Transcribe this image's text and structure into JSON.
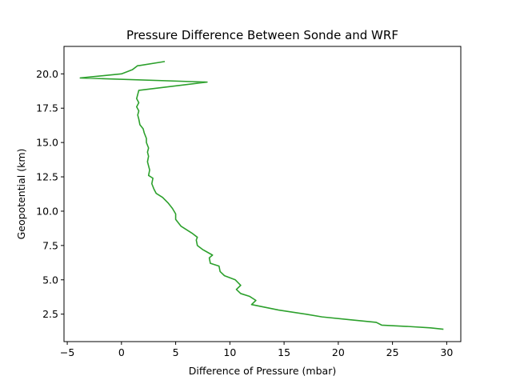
{
  "chart_data": {
    "type": "line",
    "title": "Pressure Difference Between Sonde and WRF",
    "xlabel": "Difference of Pressure (mbar)",
    "ylabel": "Geopotential (km)",
    "xlim": [
      -5.3,
      31.3
    ],
    "ylim": [
      0.5,
      22.0
    ],
    "xticks": [
      -5,
      0,
      5,
      10,
      15,
      20,
      25,
      30
    ],
    "xtick_labels": [
      "−5",
      "0",
      "5",
      "10",
      "15",
      "20",
      "25",
      "30"
    ],
    "yticks": [
      2.5,
      5.0,
      7.5,
      10.0,
      12.5,
      15.0,
      17.5,
      20.0
    ],
    "ytick_labels": [
      "2.5",
      "5.0",
      "7.5",
      "10.0",
      "12.5",
      "15.0",
      "17.5",
      "20.0"
    ],
    "grid": false,
    "series": [
      {
        "color": "#2ca02c",
        "x": [
          29.7,
          28.5,
          26.5,
          24.0,
          23.5,
          21.0,
          18.5,
          17.0,
          14.5,
          12.0,
          12.4,
          11.8,
          11.0,
          10.6,
          11.0,
          10.5,
          9.5,
          9.1,
          9.0,
          8.2,
          8.1,
          8.4,
          7.5,
          7.0,
          6.9,
          7.0,
          6.5,
          5.5,
          5.0,
          5.0,
          4.7,
          4.3,
          3.8,
          3.2,
          3.0,
          2.8,
          2.9,
          2.5,
          2.6,
          2.5,
          2.4,
          2.5,
          2.4,
          2.5,
          2.3,
          2.3,
          2.1,
          2.0,
          1.7,
          1.6,
          1.5,
          1.6,
          1.4,
          1.6,
          1.4,
          1.6,
          7.9,
          -3.8,
          0.0,
          1.0,
          1.5,
          1.6,
          4.0
        ],
        "y": [
          1.4,
          1.5,
          1.6,
          1.7,
          1.9,
          2.1,
          2.3,
          2.5,
          2.8,
          3.2,
          3.5,
          3.8,
          4.0,
          4.3,
          4.6,
          5.0,
          5.3,
          5.6,
          6.0,
          6.2,
          6.6,
          6.8,
          7.2,
          7.5,
          7.9,
          8.1,
          8.4,
          8.9,
          9.4,
          9.8,
          10.2,
          10.6,
          11.0,
          11.3,
          11.6,
          12.0,
          12.4,
          12.6,
          13.0,
          13.3,
          13.6,
          14.0,
          14.3,
          14.6,
          15.0,
          15.3,
          15.7,
          16.0,
          16.3,
          16.7,
          17.0,
          17.3,
          17.6,
          17.9,
          18.2,
          18.8,
          19.4,
          19.7,
          20.0,
          20.3,
          20.6,
          20.6,
          20.9
        ]
      }
    ]
  }
}
